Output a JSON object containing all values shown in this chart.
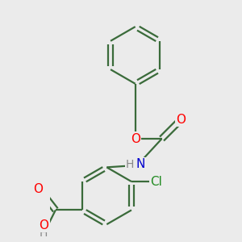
{
  "bg_color": "#ebebeb",
  "bond_color": "#3a6b3a",
  "bond_width": 1.6,
  "atom_colors": {
    "O": "#ff0000",
    "N": "#0000cd",
    "Cl": "#228b22",
    "H_label": "#888888"
  },
  "font_size": 11,
  "fig_size": [
    3.0,
    3.0
  ],
  "dpi": 100
}
